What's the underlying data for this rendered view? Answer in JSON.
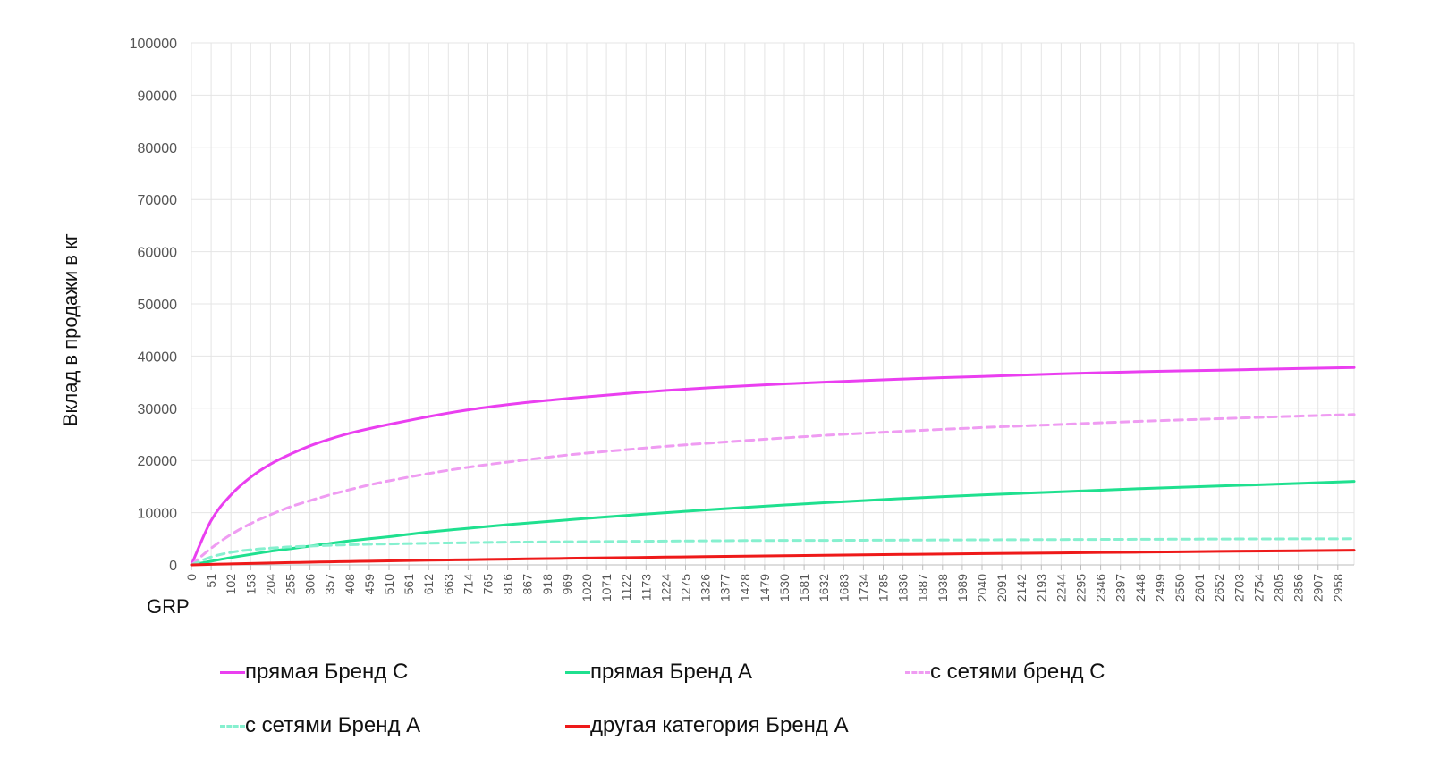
{
  "chart_data": {
    "type": "line",
    "title": "",
    "xlabel": "GRP",
    "ylabel": "Вклад в продажи в кг",
    "ylim": [
      0,
      100000
    ],
    "yticks": [
      0,
      10000,
      20000,
      30000,
      40000,
      50000,
      60000,
      70000,
      80000,
      90000,
      100000
    ],
    "xlim": [
      0,
      3000
    ],
    "xticks": [
      0,
      51,
      102,
      153,
      204,
      255,
      306,
      357,
      408,
      459,
      510,
      561,
      612,
      663,
      714,
      765,
      816,
      867,
      918,
      969,
      1020,
      1071,
      1122,
      1173,
      1224,
      1275,
      1326,
      1377,
      1428,
      1479,
      1530,
      1581,
      1632,
      1683,
      1734,
      1785,
      1836,
      1887,
      1938,
      1989,
      2040,
      2091,
      2142,
      2193,
      2244,
      2295,
      2346,
      2397,
      2448,
      2499,
      2550,
      2601,
      2652,
      2703,
      2754,
      2805,
      2856,
      2907,
      2958
    ],
    "grid": true,
    "legend_position": "bottom",
    "x": [
      0,
      51,
      102,
      153,
      204,
      255,
      306,
      357,
      408,
      459,
      510,
      612,
      714,
      816,
      918,
      1020,
      1224,
      1428,
      1632,
      1836,
      2040,
      2244,
      2448,
      2652,
      2856,
      3000
    ],
    "series": [
      {
        "name": "прямая Бренд С",
        "color": "#ea3ff0",
        "dash": "solid",
        "values": [
          0,
          8500,
          13400,
          16800,
          19300,
          21200,
          22800,
          24100,
          25200,
          26100,
          26900,
          28400,
          29700,
          30700,
          31500,
          32200,
          33400,
          34300,
          35000,
          35600,
          36100,
          36600,
          37000,
          37300,
          37600,
          37800
        ]
      },
      {
        "name": "прямая Бренд А",
        "color": "#1fe08f",
        "dash": "solid",
        "values": [
          0,
          700,
          1400,
          2000,
          2600,
          3100,
          3600,
          4100,
          4600,
          5000,
          5400,
          6300,
          7000,
          7700,
          8300,
          8900,
          10000,
          11000,
          11900,
          12700,
          13400,
          14000,
          14600,
          15100,
          15600,
          16000
        ]
      },
      {
        "name": "с сетями бренд С",
        "color": "#ef9cf2",
        "dash": "dashed",
        "values": [
          0,
          3200,
          5800,
          7900,
          9600,
          11100,
          12300,
          13400,
          14400,
          15300,
          16100,
          17500,
          18700,
          19700,
          20600,
          21400,
          22700,
          23800,
          24800,
          25600,
          26300,
          26900,
          27500,
          28000,
          28500,
          28800
        ]
      },
      {
        "name": "с сетями Бренд А",
        "color": "#86f0cf",
        "dash": "dashed",
        "values": [
          0,
          1500,
          2400,
          2900,
          3200,
          3450,
          3600,
          3750,
          3850,
          3950,
          4000,
          4150,
          4250,
          4350,
          4400,
          4450,
          4550,
          4650,
          4700,
          4750,
          4800,
          4850,
          4900,
          4950,
          4980,
          5000
        ]
      },
      {
        "name": "другая категория Бренд А",
        "color": "#ee1a1a",
        "dash": "solid",
        "values": [
          0,
          100,
          190,
          280,
          360,
          440,
          510,
          580,
          650,
          710,
          770,
          890,
          1000,
          1100,
          1200,
          1300,
          1490,
          1670,
          1840,
          2000,
          2150,
          2300,
          2440,
          2580,
          2710,
          2800
        ]
      }
    ]
  }
}
